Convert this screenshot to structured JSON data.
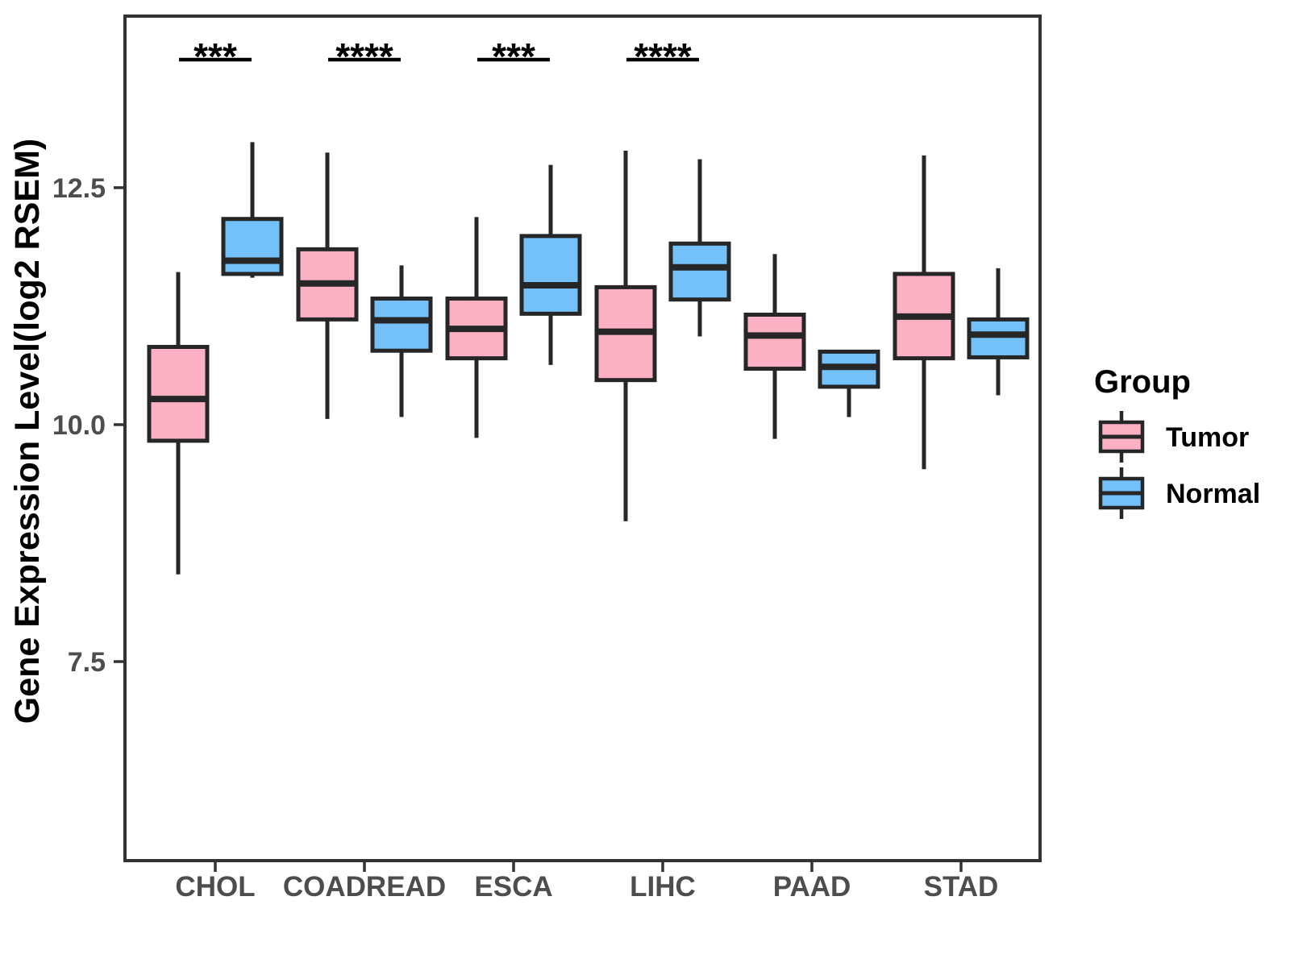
{
  "chart_data": {
    "type": "boxplot",
    "title": "",
    "ylabel": "Gene Expression Level(log2 RSEM)",
    "xlabel": "",
    "categories": [
      "CHOL",
      "COADREAD",
      "ESCA",
      "LIHC",
      "PAAD",
      "STAD"
    ],
    "y_ticks": [
      {
        "value": 7.5,
        "label": "7.5"
      },
      {
        "value": 10.0,
        "label": "10.0"
      },
      {
        "value": 12.5,
        "label": "12.5"
      }
    ],
    "ylim": [
      5.4,
      14.31
    ],
    "grid": false,
    "legend_position": "right",
    "series": [
      {
        "name": "Tumor",
        "color": "#FBB1C3",
        "boxes": [
          {
            "min": 8.42,
            "q1": 9.83,
            "median": 10.27,
            "q3": 10.82,
            "max": 11.61
          },
          {
            "min": 10.06,
            "q1": 11.11,
            "median": 11.49,
            "q3": 11.85,
            "max": 12.87
          },
          {
            "min": 9.86,
            "q1": 10.7,
            "median": 11.01,
            "q3": 11.33,
            "max": 12.19
          },
          {
            "min": 8.98,
            "q1": 10.47,
            "median": 10.98,
            "q3": 11.45,
            "max": 12.89
          },
          {
            "min": 9.85,
            "q1": 10.59,
            "median": 10.94,
            "q3": 11.16,
            "max": 11.8
          },
          {
            "min": 9.53,
            "q1": 10.7,
            "median": 11.14,
            "q3": 11.59,
            "max": 12.84
          }
        ]
      },
      {
        "name": "Normal",
        "color": "#74C0F8",
        "boxes": [
          {
            "min": 11.55,
            "q1": 11.59,
            "median": 11.73,
            "q3": 12.17,
            "max": 12.98
          },
          {
            "min": 10.08,
            "q1": 10.78,
            "median": 11.1,
            "q3": 11.33,
            "max": 11.68
          },
          {
            "min": 10.63,
            "q1": 11.17,
            "median": 11.47,
            "q3": 11.99,
            "max": 12.74
          },
          {
            "min": 10.93,
            "q1": 11.32,
            "median": 11.66,
            "q3": 11.91,
            "max": 12.8
          },
          {
            "min": 10.08,
            "q1": 10.4,
            "median": 10.61,
            "q3": 10.77,
            "max": 10.77
          },
          {
            "min": 10.31,
            "q1": 10.71,
            "median": 10.95,
            "q3": 11.11,
            "max": 11.65
          }
        ]
      }
    ],
    "significance": [
      {
        "category": "CHOL",
        "label": "***"
      },
      {
        "category": "COADREAD",
        "label": "****"
      },
      {
        "category": "ESCA",
        "label": "***"
      },
      {
        "category": "LIHC",
        "label": "****"
      }
    ],
    "legend": {
      "title": "Group",
      "entries": [
        {
          "label": "Tumor",
          "color": "#FBB1C3"
        },
        {
          "label": "Normal",
          "color": "#74C0F8"
        }
      ]
    }
  },
  "style": {
    "background": "#FFFFFF",
    "box_border_color": "#262626",
    "axis_color": "#333333",
    "tick_label_color": "#4D4D4D",
    "text_color": "#000000"
  }
}
